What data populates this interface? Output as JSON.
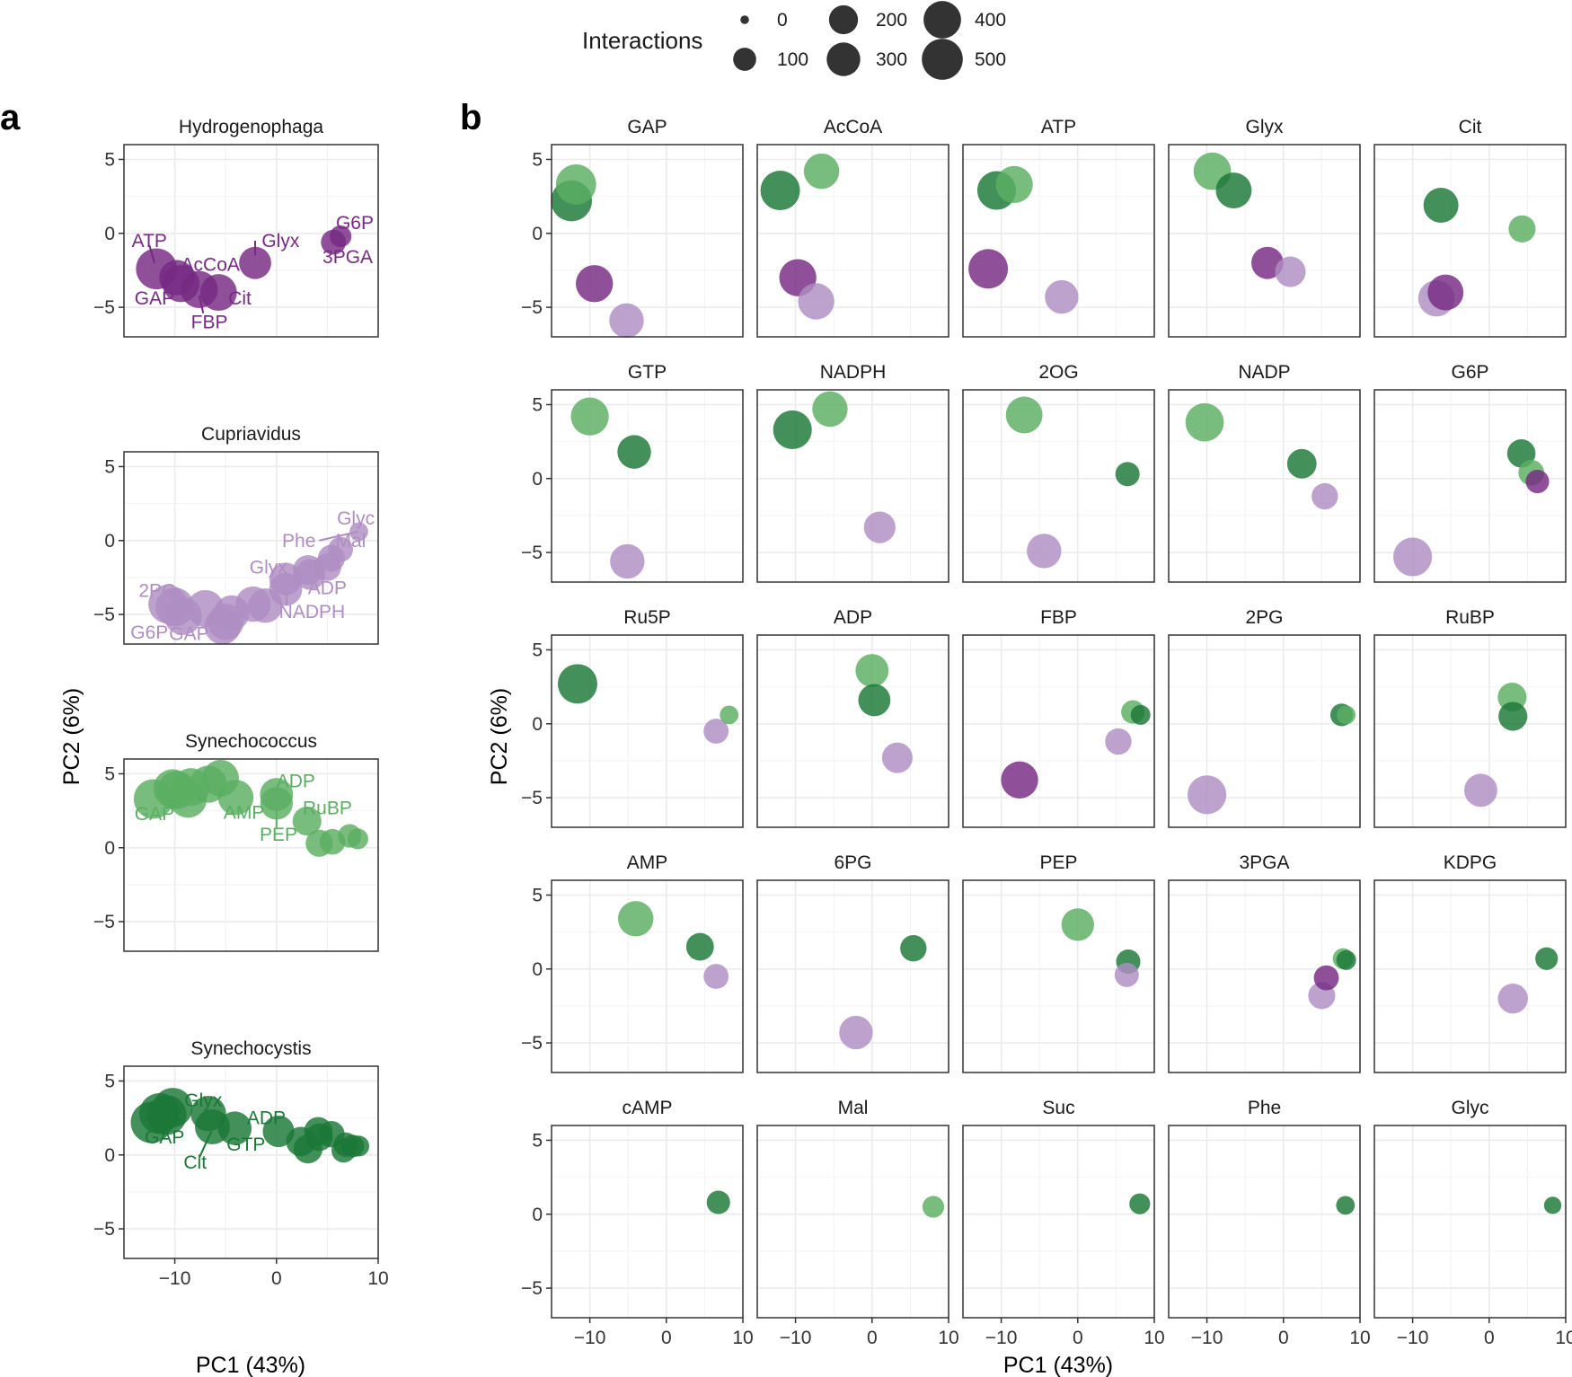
{
  "colors": {
    "Hydrogenophaga": "#762a83",
    "Cupriavidus": "#af8dc3",
    "Synechococcus": "#5aae61",
    "Synechocystis": "#1b7837"
  },
  "legend": {
    "title": "Interactions",
    "values": [
      0,
      100,
      200,
      300,
      400,
      500
    ],
    "labels": [
      "0",
      "100",
      "200",
      "300",
      "400",
      "500"
    ]
  },
  "panel_a_tag": "a",
  "panel_b_tag": "b",
  "axes": {
    "xlabel": "PC1 (43%)",
    "ylabel": "PC2 (6%)",
    "xlim": [
      -15,
      10
    ],
    "ylim": [
      -7,
      6
    ],
    "xticks": [
      -10,
      0,
      10
    ],
    "xtick_labels": [
      "−10",
      "0",
      "10"
    ],
    "yticks": [
      5,
      0,
      -5
    ],
    "ytick_labels": [
      "5",
      "0",
      "−5"
    ]
  },
  "chart_data": [
    {
      "type": "scatter",
      "panel": "a",
      "title": "Hydrogenophaga",
      "species": "Hydrogenophaga",
      "points": [
        {
          "x": 6.3,
          "y": -0.2,
          "size": 70
        },
        {
          "x": 5.6,
          "y": -0.6,
          "size": 110
        },
        {
          "x": -2.1,
          "y": -2.0,
          "size": 230
        },
        {
          "x": -11.8,
          "y": -2.4,
          "size": 440
        },
        {
          "x": -9.8,
          "y": -3.0,
          "size": 300
        },
        {
          "x": -9.4,
          "y": -3.4,
          "size": 340
        },
        {
          "x": -7.6,
          "y": -3.8,
          "size": 340
        },
        {
          "x": -5.7,
          "y": -4.0,
          "size": 330
        }
      ],
      "labels": [
        {
          "text": "G6P",
          "x": 7.7,
          "y": 0.7
        },
        {
          "text": "3PGA",
          "x": 7.0,
          "y": -1.6
        },
        {
          "text": "Glyx",
          "x": 0.4,
          "y": -0.5
        },
        {
          "text": "ATP",
          "x": -12.5,
          "y": -0.5
        },
        {
          "text": "AcCoA",
          "x": -6.5,
          "y": -2.1
        },
        {
          "text": "GAP",
          "x": -12.0,
          "y": -4.4
        },
        {
          "text": "Cit",
          "x": -3.6,
          "y": -4.4
        },
        {
          "text": "FBP",
          "x": -6.6,
          "y": -6.0
        }
      ]
    },
    {
      "type": "scatter",
      "panel": "a",
      "title": "Cupriavidus",
      "species": "Cupriavidus",
      "points": [
        {
          "x": 8.1,
          "y": 0.6,
          "size": 40
        },
        {
          "x": 6.3,
          "y": -0.6,
          "size": 110
        },
        {
          "x": 5.4,
          "y": -1.2,
          "size": 140
        },
        {
          "x": 5.0,
          "y": -1.8,
          "size": 150
        },
        {
          "x": 3.1,
          "y": -2.0,
          "size": 190
        },
        {
          "x": 3.3,
          "y": -2.3,
          "size": 200
        },
        {
          "x": 0.9,
          "y": -2.6,
          "size": 240
        },
        {
          "x": 0.9,
          "y": -3.3,
          "size": 250
        },
        {
          "x": -1.1,
          "y": -4.4,
          "size": 280
        },
        {
          "x": -2.3,
          "y": -4.3,
          "size": 300
        },
        {
          "x": -4.4,
          "y": -4.9,
          "size": 300
        },
        {
          "x": -5.0,
          "y": -5.5,
          "size": 320
        },
        {
          "x": -5.3,
          "y": -5.8,
          "size": 320
        },
        {
          "x": -7.0,
          "y": -4.6,
          "size": 340
        },
        {
          "x": -9.2,
          "y": -5.1,
          "size": 360
        },
        {
          "x": -10.0,
          "y": -4.5,
          "size": 380
        },
        {
          "x": -10.7,
          "y": -4.3,
          "size": 380
        }
      ],
      "labels": [
        {
          "text": "Glyc",
          "x": 7.8,
          "y": 1.5
        },
        {
          "text": "Phe",
          "x": 2.2,
          "y": 0.0
        },
        {
          "text": "Mal",
          "x": 7.3,
          "y": 0.0
        },
        {
          "text": "Glyx",
          "x": -0.8,
          "y": -1.8
        },
        {
          "text": "ADP",
          "x": 5.0,
          "y": -3.2
        },
        {
          "text": "NADPH",
          "x": 3.5,
          "y": -4.8
        },
        {
          "text": "2PG",
          "x": -11.7,
          "y": -3.4
        },
        {
          "text": "G6P",
          "x": -12.5,
          "y": -6.2
        },
        {
          "text": "GAP",
          "x": -8.6,
          "y": -6.3
        }
      ]
    },
    {
      "type": "scatter",
      "panel": "a",
      "title": "Synechococcus",
      "species": "Synechococcus",
      "points": [
        {
          "x": -5.5,
          "y": 4.7,
          "size": 330
        },
        {
          "x": -10.2,
          "y": 4.0,
          "size": 380
        },
        {
          "x": -9.8,
          "y": 3.9,
          "size": 370
        },
        {
          "x": -8.4,
          "y": 4.1,
          "size": 360
        },
        {
          "x": -6.7,
          "y": 4.3,
          "size": 340
        },
        {
          "x": -8.7,
          "y": 3.3,
          "size": 350
        },
        {
          "x": -12.1,
          "y": 3.3,
          "size": 400
        },
        {
          "x": -4.0,
          "y": 3.4,
          "size": 300
        },
        {
          "x": 0.0,
          "y": 3.6,
          "size": 250
        },
        {
          "x": 0.0,
          "y": 3.0,
          "size": 240
        },
        {
          "x": 3.0,
          "y": 1.8,
          "size": 170
        },
        {
          "x": 4.2,
          "y": 0.3,
          "size": 140
        },
        {
          "x": 5.5,
          "y": 0.4,
          "size": 120
        },
        {
          "x": 7.2,
          "y": 0.8,
          "size": 90
        },
        {
          "x": 8.0,
          "y": 0.6,
          "size": 60
        }
      ],
      "labels": [
        {
          "text": "ADP",
          "x": 1.9,
          "y": 4.5
        },
        {
          "text": "RuBP",
          "x": 5.0,
          "y": 2.7
        },
        {
          "text": "GAP",
          "x": -12.0,
          "y": 2.3
        },
        {
          "text": "AMP",
          "x": -3.2,
          "y": 2.4
        },
        {
          "text": "PEP",
          "x": 0.2,
          "y": 0.9
        }
      ]
    },
    {
      "type": "scatter",
      "panel": "a",
      "title": "Synechocystis",
      "species": "Synechocystis",
      "points": [
        {
          "x": -12.3,
          "y": 2.2,
          "size": 450
        },
        {
          "x": -11.5,
          "y": 2.8,
          "size": 430
        },
        {
          "x": -10.2,
          "y": 3.2,
          "size": 400
        },
        {
          "x": -10.8,
          "y": 2.7,
          "size": 410
        },
        {
          "x": -6.7,
          "y": 2.8,
          "size": 300
        },
        {
          "x": -6.3,
          "y": 1.9,
          "size": 290
        },
        {
          "x": -4.1,
          "y": 1.8,
          "size": 260
        },
        {
          "x": 0.2,
          "y": 1.6,
          "size": 220
        },
        {
          "x": 4.1,
          "y": 1.6,
          "size": 160
        },
        {
          "x": 4.2,
          "y": 1.2,
          "size": 150
        },
        {
          "x": 5.4,
          "y": 1.4,
          "size": 130
        },
        {
          "x": 2.4,
          "y": 0.9,
          "size": 180
        },
        {
          "x": 3.1,
          "y": 0.4,
          "size": 170
        },
        {
          "x": 6.8,
          "y": 0.7,
          "size": 100
        },
        {
          "x": 6.6,
          "y": 0.3,
          "size": 100
        },
        {
          "x": 7.5,
          "y": 0.6,
          "size": 80
        },
        {
          "x": 8.1,
          "y": 0.6,
          "size": 60
        }
      ],
      "labels": [
        {
          "text": "Glyx",
          "x": -7.2,
          "y": 3.7
        },
        {
          "text": "ADP",
          "x": -1.0,
          "y": 2.5
        },
        {
          "text": "GAP",
          "x": -11.0,
          "y": 1.2
        },
        {
          "text": "GTP",
          "x": -3.0,
          "y": 0.7
        },
        {
          "text": "Cit",
          "x": -8.0,
          "y": -0.5
        }
      ]
    },
    {
      "type": "scatter",
      "panel": "b",
      "title": "GAP",
      "points": [
        {
          "species": "Synechococcus",
          "x": -11.8,
          "y": 3.3,
          "size": 420
        },
        {
          "species": "Synechocystis",
          "x": -12.4,
          "y": 2.2,
          "size": 440
        },
        {
          "species": "Hydrogenophaga",
          "x": -9.4,
          "y": -3.4,
          "size": 340
        },
        {
          "species": "Cupriavidus",
          "x": -5.2,
          "y": -5.9,
          "size": 280
        }
      ]
    },
    {
      "type": "scatter",
      "panel": "b",
      "title": "AcCoA",
      "points": [
        {
          "species": "Synechococcus",
          "x": -6.6,
          "y": 4.2,
          "size": 300
        },
        {
          "species": "Synechocystis",
          "x": -12.0,
          "y": 2.9,
          "size": 400
        },
        {
          "species": "Hydrogenophaga",
          "x": -9.7,
          "y": -3.0,
          "size": 340
        },
        {
          "species": "Cupriavidus",
          "x": -7.3,
          "y": -4.6,
          "size": 320
        }
      ]
    },
    {
      "type": "scatter",
      "panel": "b",
      "title": "ATP",
      "points": [
        {
          "species": "Synechococcus",
          "x": -8.3,
          "y": 3.3,
          "size": 340
        },
        {
          "species": "Synechocystis",
          "x": -10.6,
          "y": 2.9,
          "size": 380
        },
        {
          "species": "Hydrogenophaga",
          "x": -11.7,
          "y": -2.4,
          "size": 400
        },
        {
          "species": "Cupriavidus",
          "x": -2.1,
          "y": -4.3,
          "size": 260
        }
      ]
    },
    {
      "type": "scatter",
      "panel": "b",
      "title": "Glyx",
      "points": [
        {
          "species": "Synechococcus",
          "x": -9.3,
          "y": 4.2,
          "size": 350
        },
        {
          "species": "Synechocystis",
          "x": -6.5,
          "y": 2.9,
          "size": 310
        },
        {
          "species": "Hydrogenophaga",
          "x": -2.1,
          "y": -2.0,
          "size": 230
        },
        {
          "species": "Cupriavidus",
          "x": 0.9,
          "y": -2.6,
          "size": 200
        }
      ]
    },
    {
      "type": "scatter",
      "panel": "b",
      "title": "Cit",
      "points": [
        {
          "species": "Synechocystis",
          "x": -6.3,
          "y": 1.9,
          "size": 290
        },
        {
          "species": "Synechococcus",
          "x": 4.3,
          "y": 0.3,
          "size": 140
        },
        {
          "species": "Hydrogenophaga",
          "x": -5.7,
          "y": -4.0,
          "size": 310
        },
        {
          "species": "Cupriavidus",
          "x": -6.9,
          "y": -4.4,
          "size": 320
        }
      ]
    },
    {
      "type": "scatter",
      "panel": "b",
      "title": "GTP",
      "points": [
        {
          "species": "Synechococcus",
          "x": -10.0,
          "y": 4.2,
          "size": 360
        },
        {
          "species": "Synechocystis",
          "x": -4.2,
          "y": 1.8,
          "size": 260
        },
        {
          "species": "Cupriavidus",
          "x": -5.1,
          "y": -5.6,
          "size": 280
        }
      ]
    },
    {
      "type": "scatter",
      "panel": "b",
      "title": "NADPH",
      "points": [
        {
          "species": "Synechococcus",
          "x": -5.5,
          "y": 4.7,
          "size": 300
        },
        {
          "species": "Synechocystis",
          "x": -10.4,
          "y": 3.3,
          "size": 380
        },
        {
          "species": "Cupriavidus",
          "x": 1.0,
          "y": -3.3,
          "size": 220
        }
      ]
    },
    {
      "type": "scatter",
      "panel": "b",
      "title": "2OG",
      "points": [
        {
          "species": "Synechococcus",
          "x": -7.0,
          "y": 4.3,
          "size": 330
        },
        {
          "species": "Synechocystis",
          "x": 6.5,
          "y": 0.3,
          "size": 100
        },
        {
          "species": "Cupriavidus",
          "x": -4.4,
          "y": -4.9,
          "size": 280
        }
      ]
    },
    {
      "type": "scatter",
      "panel": "b",
      "title": "NADP",
      "points": [
        {
          "species": "Synechococcus",
          "x": -10.3,
          "y": 3.8,
          "size": 370
        },
        {
          "species": "Synechocystis",
          "x": 2.4,
          "y": 1.0,
          "size": 180
        },
        {
          "species": "Cupriavidus",
          "x": 5.4,
          "y": -1.2,
          "size": 130
        }
      ]
    },
    {
      "type": "scatter",
      "panel": "b",
      "title": "G6P",
      "points": [
        {
          "species": "Synechocystis",
          "x": 4.2,
          "y": 1.7,
          "size": 160
        },
        {
          "species": "Synechococcus",
          "x": 5.5,
          "y": 0.4,
          "size": 120
        },
        {
          "species": "Hydrogenophaga",
          "x": 6.3,
          "y": -0.2,
          "size": 90
        },
        {
          "species": "Cupriavidus",
          "x": -10.0,
          "y": -5.3,
          "size": 380
        }
      ]
    },
    {
      "type": "scatter",
      "panel": "b",
      "title": "Ru5P",
      "points": [
        {
          "species": "Synechocystis",
          "x": -11.6,
          "y": 2.7,
          "size": 400
        },
        {
          "species": "Synechococcus",
          "x": 8.2,
          "y": 0.6,
          "size": 40
        },
        {
          "species": "Cupriavidus",
          "x": 6.5,
          "y": -0.5,
          "size": 110
        }
      ]
    },
    {
      "type": "scatter",
      "panel": "b",
      "title": "ADP",
      "points": [
        {
          "species": "Synechococcus",
          "x": 0.0,
          "y": 3.6,
          "size": 250
        },
        {
          "species": "Synechocystis",
          "x": 0.3,
          "y": 1.6,
          "size": 230
        },
        {
          "species": "Cupriavidus",
          "x": 3.3,
          "y": -2.3,
          "size": 200
        }
      ]
    },
    {
      "type": "scatter",
      "panel": "b",
      "title": "FBP",
      "points": [
        {
          "species": "Synechococcus",
          "x": 7.2,
          "y": 0.8,
          "size": 90
        },
        {
          "species": "Synechocystis",
          "x": 8.2,
          "y": 0.6,
          "size": 50
        },
        {
          "species": "Cupriavidus",
          "x": 5.3,
          "y": -1.2,
          "size": 130
        },
        {
          "species": "Hydrogenophaga",
          "x": -7.6,
          "y": -3.8,
          "size": 340
        }
      ]
    },
    {
      "type": "scatter",
      "panel": "b",
      "title": "2PG",
      "points": [
        {
          "species": "Synechocystis",
          "x": 7.6,
          "y": 0.6,
          "size": 80
        },
        {
          "species": "Synechococcus",
          "x": 8.2,
          "y": 0.6,
          "size": 40
        },
        {
          "species": "Cupriavidus",
          "x": -10.0,
          "y": -4.8,
          "size": 380
        }
      ]
    },
    {
      "type": "scatter",
      "panel": "b",
      "title": "RuBP",
      "points": [
        {
          "species": "Synechococcus",
          "x": 3.0,
          "y": 1.8,
          "size": 170
        },
        {
          "species": "Synechocystis",
          "x": 3.1,
          "y": 0.5,
          "size": 170
        },
        {
          "species": "Cupriavidus",
          "x": -1.1,
          "y": -4.5,
          "size": 250
        }
      ]
    },
    {
      "type": "scatter",
      "panel": "b",
      "title": "AMP",
      "points": [
        {
          "species": "Synechococcus",
          "x": -4.0,
          "y": 3.4,
          "size": 300
        },
        {
          "species": "Synechocystis",
          "x": 4.4,
          "y": 1.5,
          "size": 150
        },
        {
          "species": "Cupriavidus",
          "x": 6.5,
          "y": -0.5,
          "size": 110
        }
      ]
    },
    {
      "type": "scatter",
      "panel": "b",
      "title": "6PG",
      "points": [
        {
          "species": "Synechocystis",
          "x": 5.4,
          "y": 1.4,
          "size": 130
        },
        {
          "species": "Cupriavidus",
          "x": -2.1,
          "y": -4.3,
          "size": 260
        }
      ]
    },
    {
      "type": "scatter",
      "panel": "b",
      "title": "PEP",
      "points": [
        {
          "species": "Synechococcus",
          "x": 0.0,
          "y": 3.0,
          "size": 240
        },
        {
          "species": "Synechocystis",
          "x": 6.6,
          "y": 0.5,
          "size": 100
        },
        {
          "species": "Cupriavidus",
          "x": 6.4,
          "y": -0.4,
          "size": 100
        }
      ]
    },
    {
      "type": "scatter",
      "panel": "b",
      "title": "3PGA",
      "points": [
        {
          "species": "Synechococcus",
          "x": 7.8,
          "y": 0.7,
          "size": 60
        },
        {
          "species": "Synechocystis",
          "x": 8.2,
          "y": 0.6,
          "size": 50
        },
        {
          "species": "Hydrogenophaga",
          "x": 5.6,
          "y": -0.6,
          "size": 110
        },
        {
          "species": "Cupriavidus",
          "x": 5.0,
          "y": -1.8,
          "size": 140
        }
      ]
    },
    {
      "type": "scatter",
      "panel": "b",
      "title": "KDPG",
      "points": [
        {
          "species": "Synechocystis",
          "x": 7.5,
          "y": 0.7,
          "size": 80
        },
        {
          "species": "Cupriavidus",
          "x": 3.1,
          "y": -2.0,
          "size": 190
        }
      ]
    },
    {
      "type": "scatter",
      "panel": "b",
      "title": "cAMP",
      "points": [
        {
          "species": "Synechocystis",
          "x": 6.8,
          "y": 0.8,
          "size": 90
        }
      ]
    },
    {
      "type": "scatter",
      "panel": "b",
      "title": "Mal",
      "points": [
        {
          "species": "Synechococcus",
          "x": 8.0,
          "y": 0.5,
          "size": 70
        }
      ]
    },
    {
      "type": "scatter",
      "panel": "b",
      "title": "Suc",
      "points": [
        {
          "species": "Synechocystis",
          "x": 8.1,
          "y": 0.7,
          "size": 60
        }
      ]
    },
    {
      "type": "scatter",
      "panel": "b",
      "title": "Phe",
      "points": [
        {
          "species": "Synechocystis",
          "x": 8.1,
          "y": 0.6,
          "size": 40
        }
      ]
    },
    {
      "type": "scatter",
      "panel": "b",
      "title": "Glyc",
      "points": [
        {
          "species": "Synechocystis",
          "x": 8.3,
          "y": 0.6,
          "size": 30
        }
      ]
    }
  ]
}
